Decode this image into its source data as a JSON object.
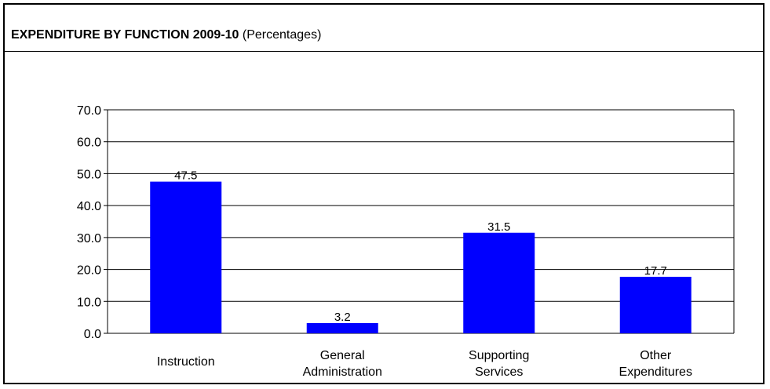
{
  "title_main": "EXPENDITURE BY FUNCTION 2009-10",
  "title_sub": "(Percentages)",
  "colors": {
    "bar": "#0000ff",
    "grid": "#000000",
    "text": "#000000"
  },
  "chart_data": {
    "type": "bar",
    "categories": [
      [
        "Instruction"
      ],
      [
        "General",
        "Administration"
      ],
      [
        "Supporting",
        "Services"
      ],
      [
        "Other",
        "Expenditures"
      ]
    ],
    "values": [
      47.5,
      3.2,
      31.5,
      17.7
    ],
    "data_labels": [
      "47.5",
      "3.2",
      "31.5",
      "17.7"
    ],
    "yticks": [
      "0.0",
      "10.0",
      "20.0",
      "30.0",
      "40.0",
      "50.0",
      "60.0",
      "70.0"
    ],
    "ylim": [
      0,
      70
    ],
    "grid": true,
    "legend": "none",
    "xlabel": "",
    "ylabel": ""
  }
}
